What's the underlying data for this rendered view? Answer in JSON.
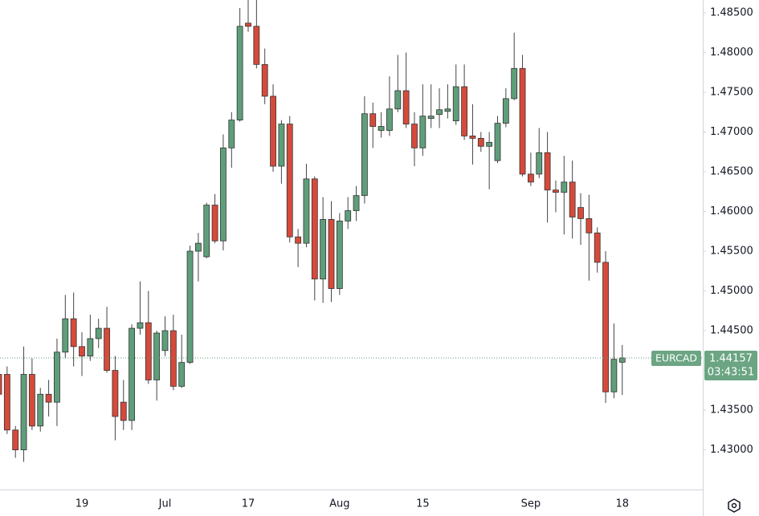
{
  "chart_data": {
    "type": "candlestick",
    "symbol": "EURCAD",
    "categories": [
      null,
      null,
      null,
      null,
      null,
      null,
      null,
      null,
      null,
      null,
      "19",
      null,
      null,
      null,
      null,
      null,
      null,
      null,
      null,
      null,
      "Jul",
      null,
      null,
      null,
      null,
      null,
      null,
      null,
      null,
      null,
      "17",
      null,
      null,
      null,
      null,
      null,
      null,
      null,
      null,
      null,
      null,
      "Aug",
      null,
      null,
      null,
      null,
      null,
      null,
      null,
      null,
      null,
      "15",
      null,
      null,
      null,
      null,
      null,
      null,
      null,
      null,
      null,
      null,
      null,
      null,
      "Sep",
      null,
      null,
      null,
      null,
      null,
      null,
      null,
      null,
      null,
      null,
      "18"
    ],
    "open": [
      1.4395,
      1.4395,
      1.4325,
      1.43,
      1.4395,
      1.433,
      1.437,
      1.436,
      1.4423,
      1.4465,
      1.443,
      1.4418,
      1.444,
      1.4453,
      1.44,
      1.436,
      1.4337,
      1.4453,
      1.446,
      1.4388,
      1.4425,
      1.445,
      1.438,
      1.441,
      1.455,
      1.4543,
      1.4608,
      1.4563,
      1.468,
      1.4715,
      1.4837,
      1.4833,
      1.4785,
      1.4745,
      1.4657,
      1.471,
      1.4568,
      1.456,
      1.4641,
      1.4515,
      1.459,
      1.4503,
      1.4588,
      1.4601,
      1.462,
      1.4723,
      1.4702,
      1.4702,
      1.4729,
      1.4752,
      1.471,
      1.468,
      1.4717,
      1.4722,
      1.4726,
      1.4714,
      1.4757,
      1.4695,
      1.4692,
      1.4682,
      1.4664,
      1.4711,
      1.4742,
      1.478,
      1.4647,
      1.4647,
      1.4674,
      1.4627,
      1.4624,
      1.4637,
      1.4605,
      1.4591,
      1.4573,
      1.4536,
      1.4373,
      1.44103
    ],
    "high": [
      1.442,
      1.4405,
      1.433,
      1.443,
      1.4415,
      1.4378,
      1.4388,
      1.444,
      1.4495,
      1.4498,
      1.4448,
      1.447,
      1.4465,
      1.448,
      1.4418,
      1.4388,
      1.4458,
      1.4512,
      1.45,
      1.445,
      1.4468,
      1.447,
      1.4445,
      1.4557,
      1.4573,
      1.4611,
      1.4622,
      1.4697,
      1.4725,
      1.4856,
      1.487,
      1.487,
      1.4805,
      1.476,
      1.4715,
      1.472,
      1.4578,
      1.466,
      1.4644,
      1.4618,
      1.4613,
      1.4598,
      1.4618,
      1.4632,
      1.4745,
      1.4737,
      1.4725,
      1.477,
      1.4797,
      1.48,
      1.4725,
      1.476,
      1.476,
      1.4755,
      1.476,
      1.4785,
      1.4785,
      1.4735,
      1.47,
      1.47,
      1.472,
      1.4755,
      1.4825,
      1.4797,
      1.4674,
      1.4705,
      1.47,
      1.4639,
      1.467,
      1.4664,
      1.4623,
      1.4621,
      1.458,
      1.455,
      1.4459,
      1.4432
    ],
    "low": [
      1.435,
      1.432,
      1.429,
      1.4285,
      1.4325,
      1.4323,
      1.4342,
      1.433,
      1.4415,
      1.4405,
      1.4393,
      1.4412,
      1.4428,
      1.4397,
      1.4312,
      1.4325,
      1.4325,
      1.4445,
      1.4383,
      1.4362,
      1.4418,
      1.4375,
      1.4378,
      1.4408,
      1.4512,
      1.4541,
      1.456,
      1.4551,
      1.4655,
      1.4713,
      1.4826,
      1.478,
      1.4735,
      1.465,
      1.4635,
      1.4561,
      1.453,
      1.4555,
      1.4488,
      1.4485,
      1.4486,
      1.4495,
      1.4578,
      1.4588,
      1.461,
      1.468,
      1.4693,
      1.4695,
      1.4725,
      1.4705,
      1.4657,
      1.467,
      1.4705,
      1.4705,
      1.4717,
      1.4709,
      1.469,
      1.4659,
      1.4675,
      1.4628,
      1.4661,
      1.4706,
      1.474,
      1.4644,
      1.4632,
      1.4642,
      1.4586,
      1.4599,
      1.4571,
      1.4566,
      1.4558,
      1.4513,
      1.4523,
      1.4359,
      1.4365,
      1.4369
    ],
    "close": [
      1.437,
      1.4325,
      1.43,
      1.4395,
      1.433,
      1.437,
      1.436,
      1.4423,
      1.4465,
      1.443,
      1.4418,
      1.444,
      1.4453,
      1.44,
      1.4342,
      1.4337,
      1.4453,
      1.446,
      1.4388,
      1.4447,
      1.445,
      1.438,
      1.441,
      1.455,
      1.456,
      1.4608,
      1.4563,
      1.468,
      1.4715,
      1.4833,
      1.4833,
      1.4785,
      1.4745,
      1.4657,
      1.471,
      1.4568,
      1.456,
      1.4641,
      1.4515,
      1.459,
      1.4503,
      1.4588,
      1.4601,
      1.462,
      1.4723,
      1.4707,
      1.4707,
      1.4729,
      1.4752,
      1.471,
      1.468,
      1.472,
      1.472,
      1.4728,
      1.4729,
      1.4757,
      1.4695,
      1.4692,
      1.4682,
      1.4687,
      1.4711,
      1.4742,
      1.478,
      1.4647,
      1.4637,
      1.4674,
      1.4627,
      1.4624,
      1.4637,
      1.4593,
      1.4591,
      1.4573,
      1.4536,
      1.4373,
      1.4414,
      1.44157
    ],
    "up_color": "#5f9e7a",
    "down_color": "#d64a3b",
    "ylim": [
      1.42501,
      1.48661
    ],
    "yticks": [
      {
        "value": 1.43,
        "label": "1.43000"
      },
      {
        "value": 1.435,
        "label": "1.43500"
      },
      {
        "value": 1.44,
        "label": "1.44000"
      },
      {
        "value": 1.445,
        "label": "1.44500"
      },
      {
        "value": 1.45,
        "label": "1.45000"
      },
      {
        "value": 1.455,
        "label": "1.45500"
      },
      {
        "value": 1.46,
        "label": "1.46000"
      },
      {
        "value": 1.465,
        "label": "1.46500"
      },
      {
        "value": 1.47,
        "label": "1.47000"
      },
      {
        "value": 1.475,
        "label": "1.47500"
      },
      {
        "value": 1.48,
        "label": "1.48000"
      },
      {
        "value": 1.485,
        "label": "1.48500"
      }
    ],
    "last_price": {
      "value": 1.44157,
      "label": "1.44157"
    },
    "countdown": "03:43:51"
  }
}
